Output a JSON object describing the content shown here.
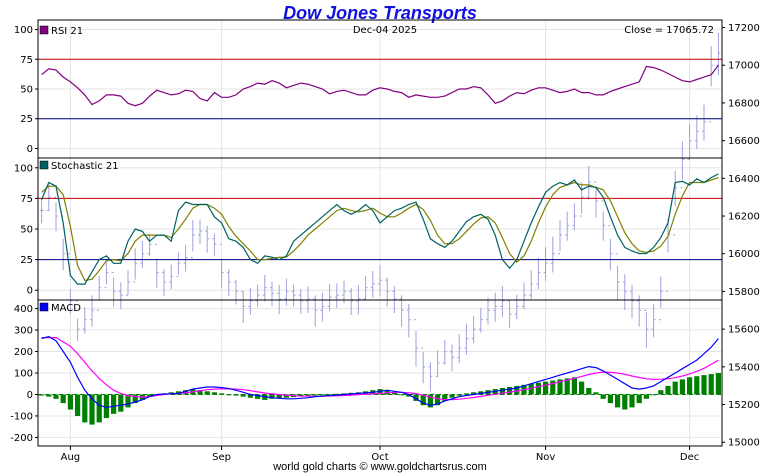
{
  "title": "Dow Jones Transports",
  "date_label": "Dec-04  2025",
  "close_label": "Close = 17065.72",
  "footer": "world gold charts © www.goldchartsrus.com",
  "colors": {
    "title": "#1010e0",
    "rsi": "#800080",
    "stoch_k": "#006060",
    "stoch_d": "#808000",
    "macd": "#0000ff",
    "macd_signal": "#ff00ff",
    "hist": "#008000",
    "price_bars": "#a0a0e0",
    "upper_band": "#cc0000",
    "lower_band": "#000080",
    "grid": "#e4e4e4"
  },
  "chart_data": [
    {
      "type": "ohlc",
      "name": "price",
      "right_axis_ticks": [
        15000,
        15200,
        15400,
        15600,
        15800,
        16000,
        16200,
        16400,
        16600,
        16800,
        17000,
        17200
      ],
      "ylim": [
        14980,
        17240
      ],
      "x_month_labels": [
        {
          "label": "Aug",
          "day": 4
        },
        {
          "label": "Sep",
          "day": 25
        },
        {
          "label": "Oct",
          "day": 47
        },
        {
          "label": "Nov",
          "day": 70
        },
        {
          "label": "Dec",
          "day": 90
        }
      ],
      "close": [
        16230,
        16300,
        16200,
        16000,
        15750,
        15600,
        15650,
        15700,
        15820,
        15900,
        15800,
        15780,
        15850,
        15950,
        16000,
        16050,
        15900,
        15850,
        15880,
        15950,
        15980,
        16100,
        16120,
        16080,
        16050,
        15900,
        15850,
        15800,
        15720,
        15750,
        15780,
        15820,
        15790,
        15760,
        15800,
        15780,
        15750,
        15760,
        15700,
        15720,
        15770,
        15780,
        15800,
        15750,
        15760,
        15820,
        15840,
        15860,
        15800,
        15760,
        15700,
        15650,
        15500,
        15400,
        15350,
        15420,
        15480,
        15450,
        15500,
        15550,
        15600,
        15650,
        15700,
        15720,
        15750,
        15680,
        15720,
        15780,
        15840,
        15900,
        15950,
        16000,
        16100,
        16150,
        16200,
        16300,
        16380,
        16280,
        16150,
        16000,
        15850,
        15800,
        15750,
        15700,
        15600,
        15650,
        15800,
        16100,
        16350,
        16500,
        16600,
        16650,
        16700,
        17000,
        17065
      ],
      "ranges": [
        0.55,
        0.6,
        0.65,
        0.7,
        0.55,
        0.5,
        0.6,
        0.7,
        0.55,
        0.5,
        0.65,
        0.6,
        0.55,
        0.7,
        0.6,
        0.5,
        0.65,
        0.6,
        0.55,
        0.5,
        0.6,
        0.7,
        0.55,
        0.6,
        0.5,
        0.65,
        0.6,
        0.55,
        0.7,
        0.6,
        0.5,
        0.6,
        0.55,
        0.65,
        0.6,
        0.5,
        0.55,
        0.6,
        0.7,
        0.65,
        0.6,
        0.55,
        0.5,
        0.6,
        0.65,
        0.55,
        0.6,
        0.7,
        0.65,
        0.6,
        0.7,
        0.75,
        0.8,
        0.7,
        0.65,
        0.6,
        0.55,
        0.6,
        0.65,
        0.7,
        0.6,
        0.55,
        0.6,
        0.65,
        0.7,
        0.6,
        0.55,
        0.6,
        0.65,
        0.7,
        0.75,
        0.8,
        0.7,
        0.65,
        0.6,
        0.7,
        0.75,
        0.7,
        0.65,
        0.7,
        0.75,
        0.8,
        0.75,
        0.7,
        0.8,
        0.75,
        0.7,
        0.75,
        0.8,
        0.85,
        0.8,
        0.75,
        0.8,
        0.9,
        0.95
      ]
    },
    {
      "type": "line",
      "name": "RSI 21",
      "label": "RSI 21",
      "yticks": [
        0,
        25,
        50,
        75,
        100
      ],
      "ylim": [
        -8,
        108
      ],
      "bands": [
        75,
        25
      ],
      "values": [
        62,
        67,
        66,
        60,
        56,
        51,
        45,
        37,
        40,
        45,
        45,
        44,
        38,
        36,
        38,
        44,
        49,
        47,
        45,
        46,
        49,
        48,
        42,
        40,
        47,
        43,
        43,
        45,
        50,
        52,
        55,
        54,
        57,
        55,
        51,
        53,
        55,
        54,
        52,
        50,
        46,
        48,
        49,
        47,
        45,
        45,
        49,
        51,
        50,
        48,
        47,
        43,
        45,
        44,
        43,
        43,
        44,
        47,
        50,
        50,
        52,
        51,
        45,
        38,
        40,
        44,
        47,
        46,
        49,
        51,
        51,
        49,
        47,
        48,
        50,
        47,
        47,
        45,
        45,
        48,
        50,
        52,
        54,
        56,
        69,
        68,
        66,
        63,
        60,
        57,
        56,
        58,
        60,
        62,
        70
      ]
    },
    {
      "type": "line",
      "name": "Stochastic 21",
      "label": "Stochastic 21",
      "yticks": [
        0,
        25,
        50,
        75,
        100
      ],
      "ylim": [
        -8,
        108
      ],
      "bands": [
        75,
        25
      ],
      "series": [
        {
          "name": "Stochastic 21",
          "values": [
            74,
            88,
            85,
            55,
            12,
            5,
            5,
            15,
            25,
            28,
            22,
            22,
            40,
            50,
            48,
            40,
            45,
            45,
            40,
            65,
            72,
            70,
            70,
            70,
            60,
            55,
            42,
            40,
            35,
            25,
            22,
            28,
            27,
            25,
            28,
            40,
            45,
            50,
            55,
            60,
            65,
            70,
            65,
            62,
            65,
            70,
            65,
            55,
            60,
            65,
            67,
            70,
            72,
            58,
            42,
            38,
            35,
            40,
            48,
            56,
            60,
            62,
            58,
            45,
            25,
            18,
            25,
            40,
            55,
            68,
            80,
            85,
            88,
            86,
            90,
            82,
            85,
            84,
            76,
            60,
            45,
            35,
            32,
            30,
            30,
            35,
            43,
            55,
            88,
            89,
            86,
            91,
            88,
            92,
            95
          ]
        },
        {
          "name": "Stochastic signal",
          "values": [
            80,
            85,
            85,
            78,
            52,
            20,
            8,
            9,
            16,
            24,
            25,
            24,
            30,
            40,
            45,
            45,
            45,
            45,
            43,
            50,
            58,
            67,
            70,
            70,
            67,
            62,
            52,
            44,
            38,
            32,
            25,
            25,
            26,
            27,
            27,
            32,
            38,
            45,
            50,
            55,
            60,
            65,
            67,
            65,
            64,
            65,
            67,
            63,
            60,
            60,
            63,
            67,
            70,
            66,
            57,
            45,
            38,
            38,
            42,
            48,
            54,
            59,
            60,
            55,
            43,
            30,
            23,
            28,
            40,
            55,
            68,
            78,
            84,
            86,
            88,
            86,
            86,
            84,
            82,
            73,
            60,
            47,
            38,
            32,
            31,
            32,
            36,
            44,
            62,
            77,
            88,
            88,
            88,
            90,
            92
          ]
        }
      ]
    },
    {
      "type": "line",
      "name": "MACD",
      "label": "MACD",
      "yticks": [
        -200,
        -100,
        0,
        100,
        200,
        300,
        400
      ],
      "ylim": [
        -240,
        440
      ],
      "series": [
        {
          "name": "MACD",
          "values": [
            260,
            270,
            250,
            200,
            150,
            80,
            20,
            -20,
            -50,
            -60,
            -55,
            -50,
            -45,
            -35,
            -25,
            -10,
            0,
            2,
            3,
            5,
            15,
            25,
            30,
            35,
            35,
            32,
            28,
            20,
            10,
            0,
            -5,
            -10,
            -15,
            -18,
            -20,
            -20,
            -18,
            -15,
            -10,
            -8,
            -5,
            -3,
            0,
            2,
            5,
            8,
            10,
            15,
            20,
            15,
            10,
            0,
            -20,
            -40,
            -50,
            -45,
            -30,
            -20,
            -10,
            -5,
            0,
            5,
            10,
            15,
            20,
            25,
            30,
            40,
            50,
            60,
            70,
            80,
            90,
            100,
            110,
            120,
            130,
            125,
            110,
            90,
            70,
            50,
            30,
            25,
            30,
            40,
            60,
            80,
            100,
            120,
            140,
            160,
            190,
            220,
            260
          ]
        },
        {
          "name": "MACD signal",
          "values": [
            265,
            265,
            265,
            245,
            225,
            190,
            150,
            110,
            75,
            45,
            20,
            5,
            -5,
            -10,
            -12,
            -10,
            -5,
            0,
            3,
            5,
            8,
            12,
            18,
            22,
            25,
            26,
            26,
            25,
            22,
            18,
            12,
            7,
            3,
            0,
            -3,
            -5,
            -8,
            -8,
            -9,
            -8,
            -7,
            -6,
            -5,
            -3,
            -1,
            1,
            3,
            5,
            8,
            10,
            10,
            8,
            4,
            -4,
            -12,
            -20,
            -24,
            -24,
            -22,
            -18,
            -14,
            -9,
            -4,
            1,
            6,
            11,
            16,
            22,
            29,
            36,
            43,
            51,
            59,
            67,
            75,
            84,
            93,
            100,
            104,
            103,
            100,
            94,
            86,
            79,
            73,
            70,
            71,
            73,
            78,
            86,
            96,
            108,
            122,
            140,
            160
          ]
        }
      ],
      "histogram": [
        -5,
        -10,
        -20,
        -40,
        -70,
        -100,
        -130,
        -140,
        -130,
        -110,
        -90,
        -80,
        -60,
        -40,
        -25,
        -10,
        0,
        5,
        10,
        15,
        20,
        25,
        20,
        15,
        10,
        5,
        0,
        -5,
        -10,
        -15,
        -20,
        -25,
        -20,
        -18,
        -15,
        -12,
        -10,
        -8,
        -5,
        -3,
        0,
        3,
        5,
        8,
        10,
        15,
        20,
        25,
        20,
        10,
        0,
        -10,
        -30,
        -50,
        -60,
        -50,
        -30,
        -15,
        -5,
        5,
        10,
        15,
        20,
        25,
        30,
        35,
        40,
        45,
        50,
        55,
        60,
        65,
        70,
        75,
        80,
        60,
        30,
        10,
        -20,
        -40,
        -60,
        -70,
        -60,
        -40,
        -20,
        0,
        20,
        40,
        60,
        70,
        80,
        85,
        90,
        95,
        100
      ]
    }
  ]
}
